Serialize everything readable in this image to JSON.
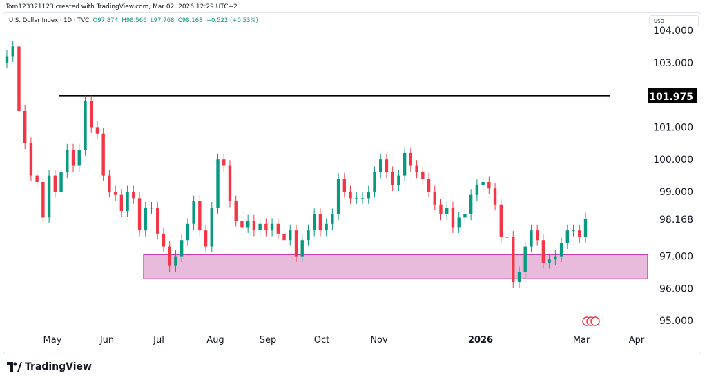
{
  "credit": "Tom123321123 created with TradingView.com, Mar 02, 2026 12:29 UTC+2",
  "legend": {
    "symbol": "U.S. Dollar Index · 1D · TVC",
    "open": "O97.874",
    "high": "H98.566",
    "low": "L97.768",
    "close": "C98.168",
    "change": "+0.522 (+0.53%)"
  },
  "currency": "USD",
  "footer_logo": "TradingView",
  "colors": {
    "up": "#089981",
    "down": "#f23645",
    "zone_fill": "#e8bbdd",
    "zone_border": "#c832a8",
    "resistance": "#000000"
  },
  "chart_data": {
    "type": "candlestick",
    "ylim": [
      94.6,
      104.4
    ],
    "y_ticks": [
      "104.000",
      "103.000",
      "101.000",
      "100.000",
      "99.000",
      "97.000",
      "96.000",
      "95.000"
    ],
    "x_ticks": [
      "May",
      "Jun",
      "Jul",
      "Aug",
      "Sep",
      "Oct",
      "Nov",
      "2026",
      "Mar",
      "Apr"
    ],
    "last_price": "98.168",
    "resistance_line": {
      "value": 101.975,
      "label": "101.975"
    },
    "support_zone": [
      96.3,
      97.05
    ],
    "closes": [
      103.2,
      103.5,
      101.5,
      100.5,
      99.5,
      99.3,
      98.2,
      99.5,
      99.0,
      99.6,
      100.3,
      99.8,
      100.3,
      101.8,
      101.0,
      100.8,
      99.5,
      99.0,
      98.9,
      98.4,
      99.0,
      98.8,
      97.8,
      98.5,
      98.5,
      97.7,
      97.3,
      96.7,
      97.0,
      97.5,
      98.0,
      98.7,
      97.8,
      97.3,
      98.5,
      100.0,
      99.8,
      98.7,
      98.1,
      97.9,
      98.1,
      97.8,
      98.0,
      97.8,
      98.0,
      97.7,
      97.5,
      97.8,
      97.0,
      97.5,
      97.8,
      98.3,
      97.8,
      98.0,
      98.3,
      99.4,
      99.0,
      98.8,
      98.8,
      98.8,
      99.0,
      99.6,
      100.0,
      99.6,
      99.2,
      99.5,
      100.2,
      99.8,
      99.6,
      99.4,
      99.0,
      98.6,
      98.3,
      98.5,
      97.9,
      98.2,
      98.3,
      98.9,
      99.2,
      99.3,
      99.1,
      98.6,
      97.6,
      97.6,
      96.2,
      96.5,
      97.3,
      97.8,
      97.5,
      96.8,
      96.9,
      97.0,
      97.4,
      97.8,
      97.8,
      97.6,
      98.168
    ]
  }
}
